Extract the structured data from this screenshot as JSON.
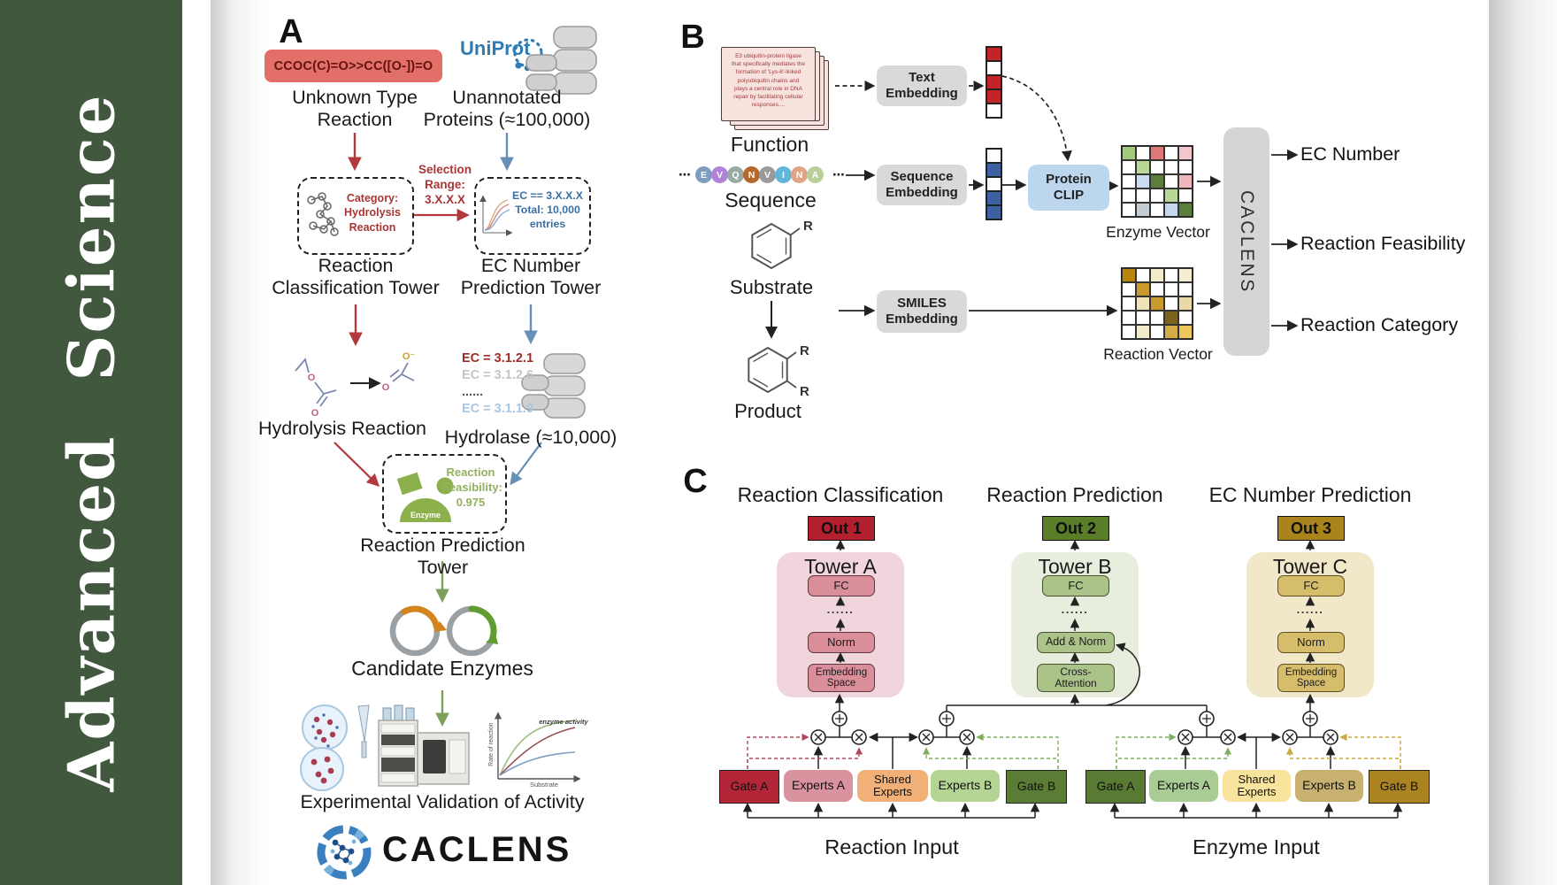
{
  "journal": {
    "name": "Advanced  Science"
  },
  "colors": {
    "sidebar_green": "#41583f",
    "arrow_red": "#b3383c",
    "arrow_blue": "#6690b8",
    "arrow_green": "#7ca05a",
    "out1_red": "#b41f2e",
    "out2_green": "#5a7d2a",
    "out3_gold": "#a9841c"
  },
  "panelA": {
    "label": "A",
    "smiles": "CCOC(C)=O>>CC([O-])=O",
    "unknown_reaction": "Unknown Type\nReaction",
    "uniprot": "UniProt",
    "unannotated_proteins": "Unannotated\nProteins (≈100,000)",
    "selection_range": "Selection\nRange:\n3.X.X.X",
    "category": "Category:\nHydrolysis\nReaction",
    "ec_selection": "EC == 3.X.X.X\nTotal: 10,000\nentries",
    "classification_tower": "Reaction\nClassification Tower",
    "ec_prediction_tower": "EC Number\nPrediction Tower",
    "hydrolysis_reaction": "Hydrolysis Reaction",
    "ec_list": [
      "EC = 3.1.2.1",
      "EC = 3.1.2.6",
      "......",
      "EC = 3.1.1.9"
    ],
    "hydrolase": "Hydrolase (≈10,000)",
    "enzyme_label": "Enzyme",
    "feasibility": "Reaction\nFeasibility:\n0.975",
    "prediction_tower": "Reaction Prediction Tower",
    "candidate_enzymes": "Candidate Enzymes",
    "activity_plot": {
      "curve_label": "enzyme activity",
      "ylabel": "Rate of reaction",
      "xlabel": "Substrate"
    },
    "validation": "Experimental Validation of Activity",
    "logo": "CACLENS"
  },
  "panelB": {
    "label": "B",
    "function_card": "E3 ubiquitin-protein ligase\nthat specifically mediates the\nformation of 'Lys-6'-linked\npolyubiquitin chains and\nplays a central role in DNA\nrepair by facilitating cellular\nresponses....",
    "function_label": "Function",
    "ellipsis": "⋯",
    "sequence": [
      {
        "letter": "E",
        "color": "#7d9cc0"
      },
      {
        "letter": "V",
        "color": "#b083d6"
      },
      {
        "letter": "Q",
        "color": "#98aaa4"
      },
      {
        "letter": "N",
        "color": "#b5682a"
      },
      {
        "letter": "V",
        "color": "#9a9a9a"
      },
      {
        "letter": "I",
        "color": "#5fb6d8"
      },
      {
        "letter": "N",
        "color": "#e2a285"
      },
      {
        "letter": "A",
        "color": "#b9cf9a"
      }
    ],
    "sequence_label": "Sequence",
    "substrate_label": "Substrate",
    "r_label": "R",
    "product_label": "Product",
    "text_embedding": "Text\nEmbedding",
    "sequence_embedding": "Sequence\nEmbedding",
    "smiles_embedding": "SMILES\nEmbedding",
    "protein_clip": "Protein\nCLIP",
    "text_vector": [
      "#c32427",
      "#ffffff",
      "#c32427",
      "#c32427",
      "#ffffff"
    ],
    "sequence_vector": [
      "#ffffff",
      "#3c62a4",
      "#ffffff",
      "#3c62a4",
      "#3c62a4"
    ],
    "enzyme_vector": [
      [
        "#a3c97c",
        "#ffffff",
        "#e07878",
        "#ffffff",
        "#f2c6ca"
      ],
      [
        "#ffffff",
        "#b8d898",
        "#ffffff",
        "#ffffff",
        "#ffffff"
      ],
      [
        "#ffffff",
        "#ccdcf0",
        "#5c7e3c",
        "#ffffff",
        "#f0b8bc"
      ],
      [
        "#ffffff",
        "#ffffff",
        "#ffffff",
        "#b8d898",
        "#ffffff"
      ],
      [
        "#ffffff",
        "#c4ccd4",
        "#ffffff",
        "#c6d8ee",
        "#5c7e3c"
      ]
    ],
    "enzyme_vector_label": "Enzyme Vector",
    "reaction_vector": [
      [
        "#b8860b",
        "#ffffff",
        "#f2ecca",
        "#ffffff",
        "#f5eed0"
      ],
      [
        "#ffffff",
        "#c9992b",
        "#ffffff",
        "#ffffff",
        "#ffffff"
      ],
      [
        "#ffffff",
        "#efe2b4",
        "#c9992b",
        "#ffffff",
        "#e9d9a8"
      ],
      [
        "#ffffff",
        "#ffffff",
        "#ffffff",
        "#7c641c",
        "#ffffff"
      ],
      [
        "#ffffff",
        "#f2ecca",
        "#ffffff",
        "#d2ad46",
        "#ecc75e"
      ]
    ],
    "reaction_vector_label": "Reaction Vector",
    "caclens": "CACLENS",
    "outputs": [
      "EC Number",
      "Reaction Feasibility",
      "Reaction Category"
    ]
  },
  "panelC": {
    "label": "C",
    "headers": [
      "Reaction Classification",
      "Reaction Prediction",
      "EC Number Prediction"
    ],
    "outs": [
      "Out 1",
      "Out 2",
      "Out 3"
    ],
    "towers": [
      {
        "title": "Tower A",
        "fc": "FC",
        "dots": "......",
        "mid": "Norm",
        "bottom": "Embedding\nSpace"
      },
      {
        "title": "Tower B",
        "fc": "FC",
        "dots": "......",
        "mid": "Add & Norm",
        "bottom": "Cross-\nAttention"
      },
      {
        "title": "Tower C",
        "fc": "FC",
        "dots": "......",
        "mid": "Norm",
        "bottom": "Embedding\nSpace"
      }
    ],
    "moe_left": {
      "gate_a": "Gate A",
      "experts_a": "Experts A",
      "shared": "Shared\nExperts",
      "experts_b": "Experts B",
      "gate_b": "Gate B",
      "input_label": "Reaction Input"
    },
    "moe_right": {
      "gate_a": "Gate A",
      "experts_a": "Experts A",
      "shared": "Shared\nExperts",
      "experts_b": "Experts B",
      "gate_b": "Gate B",
      "input_label": "Enzyme Input"
    }
  }
}
